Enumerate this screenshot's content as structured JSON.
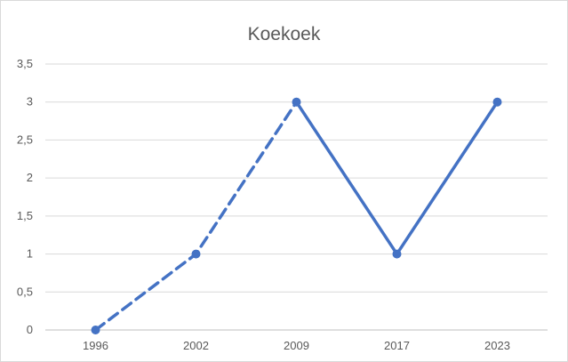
{
  "chart_data": {
    "type": "line",
    "title": "Koekoek",
    "xlabel": "",
    "ylabel": "",
    "categories": [
      "1996",
      "2002",
      "2009",
      "2017",
      "2023"
    ],
    "series": [
      {
        "values": [
          0,
          1,
          3,
          1,
          3
        ],
        "dashed_until_index": 2,
        "color": "#4472c4"
      }
    ],
    "ylim": [
      0,
      3.5
    ],
    "yticks": [
      "0",
      "0,5",
      "1",
      "1,5",
      "2",
      "2,5",
      "3",
      "3,5"
    ],
    "grid": true,
    "legend": "none"
  }
}
